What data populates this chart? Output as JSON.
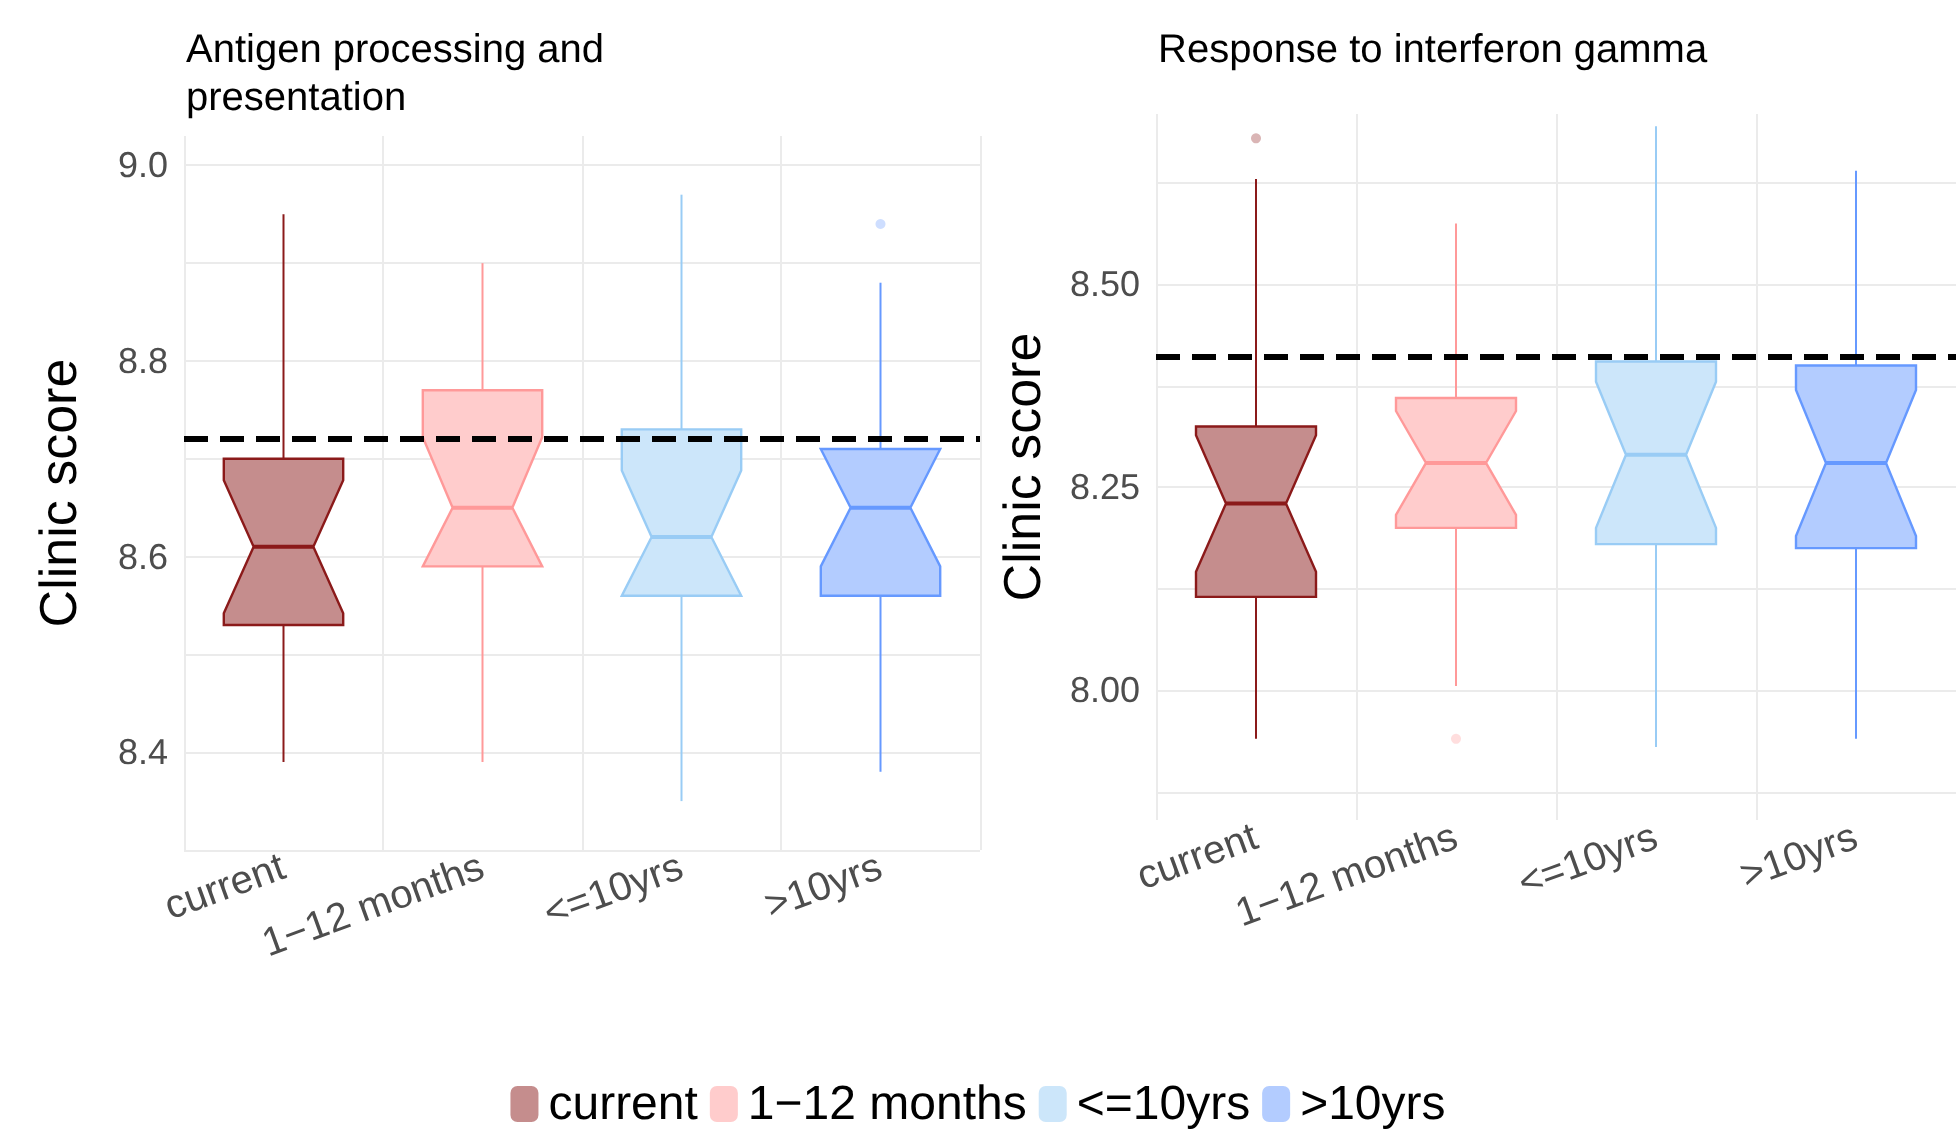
{
  "chart_data": [
    {
      "type": "box",
      "title": "Antigen processing and presentation",
      "ylabel": "Clinic score",
      "categories": [
        "current",
        "1−12 months",
        "<=10yrs",
        ">10yrs"
      ],
      "series": [
        {
          "name": "current",
          "color": "#8b1a1a",
          "boxes": [
            {
              "low": 8.39,
              "q1": 8.53,
              "median": 8.61,
              "q3": 8.7,
              "high": 8.95
            },
            null,
            null,
            null
          ]
        },
        {
          "name": "1−12 months",
          "color": "#ff9999",
          "boxes": [
            null,
            {
              "low": 8.39,
              "q1": 8.59,
              "median": 8.65,
              "q3": 8.77,
              "high": 8.9
            },
            null,
            null
          ]
        },
        {
          "name": "<=10yrs",
          "color": "#99ccf5",
          "boxes": [
            null,
            null,
            {
              "low": 8.35,
              "q1": 8.56,
              "median": 8.62,
              "q3": 8.73,
              "high": 8.97
            },
            null
          ]
        },
        {
          "name": ">10yrs",
          "color": "#6699ff",
          "boxes": [
            null,
            null,
            null,
            {
              "low": 8.38,
              "q1": 8.56,
              "median": 8.65,
              "q3": 8.71,
              "high": 8.88,
              "outliers": [
                8.94
              ]
            }
          ]
        }
      ],
      "ylim": [
        8.3,
        9.03
      ],
      "yticks": [
        {
          "value": 8.3,
          "label": null
        },
        8.4,
        {
          "value": 8.5,
          "label": null
        },
        8.6,
        {
          "value": 8.7,
          "label": null
        },
        8.8,
        {
          "value": 8.9,
          "label": null
        },
        {
          "value": 9.0,
          "label": "9.0"
        }
      ],
      "ref_lines": [
        {
          "axis": "y",
          "value": 8.72,
          "color": "#000000",
          "line_style": "dashed"
        }
      ],
      "grid": true,
      "legend": "bottom"
    },
    {
      "type": "box",
      "title": "Response to interferon gamma",
      "ylabel": "Clinic score",
      "categories": [
        "current",
        "1−12 months",
        "<=10yrs",
        ">10yrs"
      ],
      "series": [
        {
          "name": "current",
          "color": "#8b1a1a",
          "boxes": [
            {
              "low": 7.94,
              "q1": 8.115,
              "median": 8.23,
              "q3": 8.325,
              "high": 8.63,
              "outliers": [
                8.68
              ]
            },
            null,
            null,
            null
          ]
        },
        {
          "name": "1−12 months",
          "color": "#ff9999",
          "boxes": [
            null,
            {
              "low": 8.005,
              "q1": 8.2,
              "median": 8.28,
              "q3": 8.36,
              "high": 8.575,
              "outliers": [
                7.94
              ]
            },
            null,
            null
          ]
        },
        {
          "name": "<=10yrs",
          "color": "#99ccf5",
          "boxes": [
            null,
            null,
            {
              "low": 7.93,
              "q1": 8.18,
              "median": 8.29,
              "q3": 8.405,
              "high": 8.695
            },
            null
          ]
        },
        {
          "name": ">10yrs",
          "color": "#6699ff",
          "boxes": [
            null,
            null,
            null,
            {
              "low": 7.94,
              "q1": 8.175,
              "median": 8.28,
              "q3": 8.4,
              "high": 8.64
            }
          ]
        }
      ],
      "ylim": [
        7.84,
        8.71
      ],
      "yticks": [
        {
          "value": 7.875,
          "label": null
        },
        {
          "value": 8.0,
          "label": "8.00"
        },
        {
          "value": 8.125,
          "label": null
        },
        8.25,
        {
          "value": 8.375,
          "label": null
        },
        {
          "value": 8.5,
          "label": "8.50"
        },
        {
          "value": 8.625,
          "label": null
        }
      ],
      "ref_lines": [
        {
          "axis": "y",
          "value": 8.41,
          "color": "#000000",
          "line_style": "dashed"
        }
      ],
      "grid": true
    }
  ]
}
